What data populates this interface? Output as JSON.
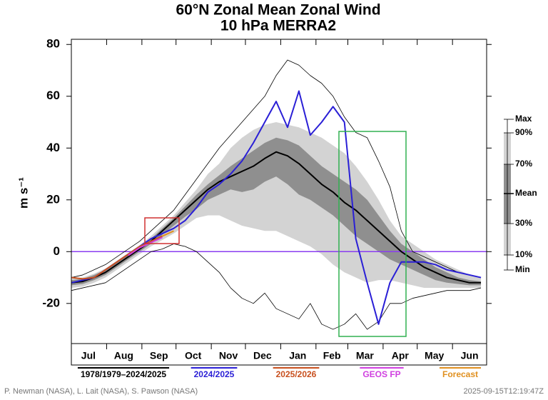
{
  "chart_data": {
    "type": "line",
    "title": "60°N Zonal Mean Zonal Wind",
    "subtitle": "10 hPa   MERRA2",
    "y_label": "m s⁻¹",
    "climatology_label": "1978/1979–2024/2025",
    "credit": "P. Newman (NASA), L. Lait (NASA), S. Pawson (NASA)",
    "timestamp": "2025-09-15T12:19:47Z",
    "xlim": [
      0,
      365
    ],
    "ylim": [
      -35.5,
      82
    ],
    "yticks": [
      80,
      60,
      40,
      20,
      0,
      -20
    ],
    "xticks": [
      {
        "value": 15,
        "label": "Jul"
      },
      {
        "value": 46,
        "label": "Aug"
      },
      {
        "value": 77,
        "label": "Sep"
      },
      {
        "value": 107,
        "label": "Oct"
      },
      {
        "value": 138,
        "label": "Nov"
      },
      {
        "value": 168,
        "label": "Dec"
      },
      {
        "value": 199,
        "label": "Jan"
      },
      {
        "value": 229,
        "label": "Feb"
      },
      {
        "value": 258,
        "label": "Mar"
      },
      {
        "value": 289,
        "label": "Apr"
      },
      {
        "value": 319,
        "label": "May"
      },
      {
        "value": 350,
        "label": "Jun"
      }
    ],
    "xminorticks": [
      0,
      31,
      62,
      92,
      123,
      153,
      184,
      215,
      243,
      274,
      304,
      335,
      365
    ],
    "zero_line_color": "#8a3cf0",
    "x": [
      0,
      10,
      20,
      30,
      40,
      50,
      60,
      70,
      80,
      90,
      100,
      110,
      120,
      130,
      140,
      150,
      160,
      170,
      180,
      190,
      200,
      210,
      220,
      230,
      240,
      250,
      260,
      270,
      280,
      290,
      300,
      310,
      320,
      330,
      340,
      350,
      360
    ],
    "series": [
      {
        "name": "Max",
        "color": "#000000",
        "line": "thin",
        "values": [
          -10,
          -9,
          -7,
          -5,
          -2,
          1,
          4,
          8,
          12,
          16,
          22,
          28,
          34,
          40,
          45,
          50,
          55,
          60,
          68,
          74,
          72,
          68,
          65,
          60,
          52,
          46,
          44,
          35,
          25,
          8,
          0,
          -2,
          -4,
          -6,
          -8,
          -9,
          -10
        ]
      },
      {
        "name": "90%",
        "fill": "#d3d3d3",
        "values": [
          -10.5,
          -10,
          -8.5,
          -6.5,
          -3.5,
          -0.5,
          2.5,
          6,
          10,
          14,
          19,
          24,
          30,
          34,
          40,
          44,
          47,
          49,
          50,
          49,
          48,
          46,
          44,
          41,
          38,
          33,
          27,
          20,
          12,
          6,
          3,
          0,
          -3,
          -5,
          -7,
          -9,
          -10
        ]
      },
      {
        "name": "70%",
        "fill": "#8f8f8f",
        "values": [
          -11,
          -10.5,
          -9,
          -7,
          -4,
          -1,
          2,
          5,
          9,
          13,
          17.5,
          22,
          26,
          29.5,
          33,
          36,
          39,
          42,
          44,
          43,
          41,
          37,
          33,
          30,
          27,
          24,
          20,
          14,
          8,
          3,
          0,
          -3,
          -6,
          -8,
          -10,
          -11,
          -11.5
        ]
      },
      {
        "name": "Mean",
        "color": "#000000",
        "values": [
          -12,
          -11.5,
          -10,
          -8,
          -5,
          -2,
          1,
          4,
          8,
          12,
          16,
          20,
          24,
          27,
          29,
          31,
          33,
          36,
          38.5,
          37,
          34,
          30,
          26,
          23,
          19,
          16,
          12,
          8,
          4,
          0,
          -3,
          -6,
          -8,
          -10,
          -11,
          -12,
          -12
        ]
      },
      {
        "name": "30%",
        "fill": "#8f8f8f",
        "values": [
          -13,
          -12.5,
          -11,
          -9,
          -6,
          -3,
          0,
          3,
          6.5,
          10,
          13.5,
          16.5,
          20,
          22,
          24,
          23,
          24,
          27,
          29,
          26,
          22,
          20,
          17,
          14,
          10,
          6,
          3,
          0,
          -3,
          -5,
          -7,
          -9,
          -11,
          -12,
          -12.5,
          -13,
          -13
        ]
      },
      {
        "name": "10%",
        "fill": "#d3d3d3",
        "values": [
          -14,
          -13.5,
          -12,
          -10,
          -7,
          -4,
          -1,
          2,
          4.5,
          7,
          10,
          13,
          14,
          14,
          12,
          10,
          9,
          8,
          8,
          6,
          4,
          2,
          -1,
          -5,
          -8,
          -10,
          -12,
          -11,
          -11,
          -12,
          -13,
          -14,
          -14,
          -14,
          -14,
          -14,
          -14
        ]
      },
      {
        "name": "Min",
        "color": "#000000",
        "line": "thin",
        "values": [
          -15,
          -14,
          -13,
          -12,
          -9,
          -6,
          -3,
          0,
          1,
          3,
          2,
          0,
          -4,
          -8,
          -14,
          -18,
          -20,
          -16,
          -22,
          -24,
          -26,
          -20,
          -28,
          -30,
          -28,
          -24,
          -30,
          -27,
          -20,
          -20,
          -18,
          -17,
          -16,
          -15,
          -15,
          -15,
          -14
        ]
      },
      {
        "name": "2024/2025",
        "color": "#2a1fd6",
        "values": [
          -12,
          -11,
          -10,
          -7,
          -4,
          -1,
          2,
          5,
          7,
          9,
          12,
          17,
          23,
          26,
          30,
          35,
          42,
          50,
          58,
          48,
          62,
          45,
          50,
          56,
          50,
          5,
          -12,
          -28,
          -12,
          -4,
          -4,
          -4,
          -5,
          -7,
          -8,
          -9,
          -10
        ]
      },
      {
        "name": "2025/2026",
        "color": "#c8501e",
        "values": [
          -10,
          -10.5,
          -10,
          -7,
          -4,
          -1,
          2,
          4,
          6,
          null,
          null,
          null,
          null,
          null,
          null,
          null,
          null,
          null,
          null,
          null,
          null,
          null,
          null,
          null,
          null,
          null,
          null,
          null,
          null,
          null,
          null,
          null,
          null,
          null,
          null,
          null,
          null
        ]
      },
      {
        "name": "GEOS FP",
        "color": "#d040e0",
        "values": [
          null,
          null,
          null,
          null,
          null,
          -1.5,
          1.5,
          3.5,
          5.5,
          null,
          null,
          null,
          null,
          null,
          null,
          null,
          null,
          null,
          null,
          null,
          null,
          null,
          null,
          null,
          null,
          null,
          null,
          null,
          null,
          null,
          null,
          null,
          null,
          null,
          null,
          null,
          null
        ]
      },
      {
        "name": "Forecast",
        "color": "#e09020",
        "values": [
          null,
          null,
          null,
          null,
          null,
          null,
          null,
          null,
          6,
          8,
          null,
          null,
          null,
          null,
          null,
          null,
          null,
          null,
          null,
          null,
          null,
          null,
          null,
          null,
          null,
          null,
          null,
          null,
          null,
          null,
          null,
          null,
          null,
          null,
          null,
          null,
          null
        ]
      }
    ]
  }
}
